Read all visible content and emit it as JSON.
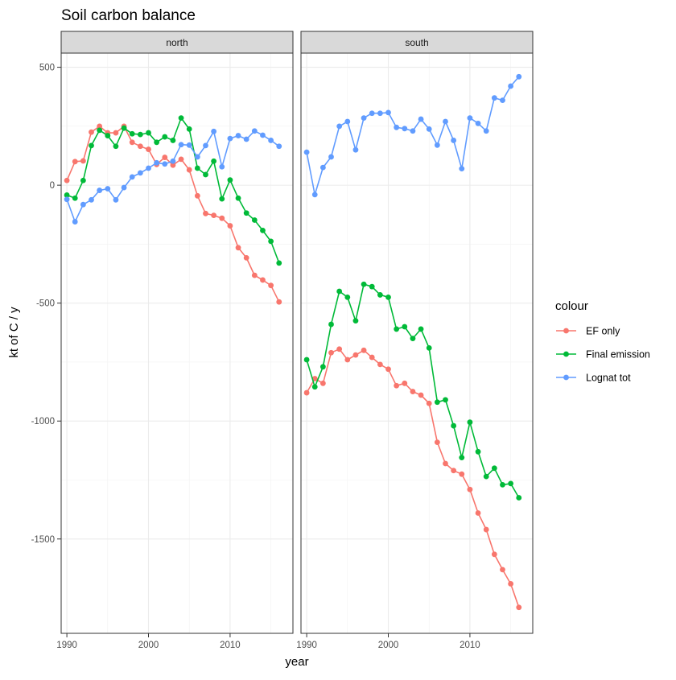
{
  "chart_data": {
    "type": "line",
    "title": "Soil carbon balance",
    "xlabel": "year",
    "ylabel": "kt of C / y",
    "xlim": [
      1989.3,
      2017.7
    ],
    "ylim": [
      -1900,
      560
    ],
    "x_ticks": [
      1990,
      2000,
      2010
    ],
    "y_ticks": [
      500,
      0,
      -500,
      -1000,
      -1500
    ],
    "y_tick_labels": [
      "500",
      "0",
      "-500",
      "-1000",
      "-1500"
    ],
    "grid": true,
    "legend": {
      "title": "colour",
      "position": "right",
      "entries": [
        "EF only",
        "Final emission",
        "Lognat tot"
      ]
    },
    "colors": {
      "EF only": "#F8766D",
      "Final emission": "#00BA38",
      "Lognat tot": "#619CFF"
    },
    "x": [
      1990,
      1991,
      1992,
      1993,
      1994,
      1995,
      1996,
      1997,
      1998,
      1999,
      2000,
      2001,
      2002,
      2003,
      2004,
      2005,
      2006,
      2007,
      2008,
      2009,
      2010,
      2011,
      2012,
      2013,
      2014,
      2015,
      2016
    ],
    "panels": [
      {
        "label": "north",
        "series": [
          {
            "name": "EF only",
            "values": [
              20,
              100,
              103,
              225,
              250,
              222,
              222,
              250,
              182,
              165,
              152,
              88,
              118,
              85,
              110,
              65,
              -45,
              -120,
              -128,
              -140,
              -172,
              -265,
              -308,
              -382,
              -402,
              -425,
              -495
            ]
          },
          {
            "name": "Final emission",
            "values": [
              -42,
              -55,
              20,
              168,
              233,
              210,
              165,
              242,
              218,
              215,
              222,
              182,
              205,
              190,
              285,
              238,
              72,
              45,
              102,
              -58,
              22,
              -55,
              -118,
              -148,
              -192,
              -238,
              -330
            ]
          },
          {
            "name": "Lognat tot",
            "values": [
              -60,
              -155,
              -82,
              -62,
              -22,
              -15,
              -62,
              -10,
              35,
              52,
              72,
              95,
              90,
              102,
              172,
              170,
              120,
              168,
              228,
              78,
              198,
              210,
              195,
              230,
              212,
              190,
              165
            ]
          }
        ]
      },
      {
        "label": "south",
        "series": [
          {
            "name": "EF only",
            "values": [
              -880,
              -820,
              -840,
              -710,
              -695,
              -740,
              -720,
              -700,
              -730,
              -760,
              -780,
              -850,
              -840,
              -875,
              -890,
              -925,
              -1090,
              -1180,
              -1210,
              -1225,
              -1290,
              -1390,
              -1460,
              -1565,
              -1630,
              -1690,
              -1790
            ]
          },
          {
            "name": "Final emission",
            "values": [
              -740,
              -855,
              -770,
              -590,
              -450,
              -475,
              -575,
              -420,
              -430,
              -465,
              -475,
              -610,
              -600,
              -650,
              -610,
              -690,
              -920,
              -910,
              -1020,
              -1155,
              -1005,
              -1130,
              -1235,
              -1200,
              -1270,
              -1265,
              -1325
            ]
          },
          {
            "name": "Lognat tot",
            "values": [
              140,
              -40,
              75,
              120,
              250,
              270,
              150,
              285,
              305,
              305,
              308,
              245,
              240,
              230,
              280,
              238,
              170,
              270,
              190,
              70,
              285,
              262,
              230,
              370,
              360,
              420,
              460
            ]
          }
        ]
      }
    ]
  }
}
